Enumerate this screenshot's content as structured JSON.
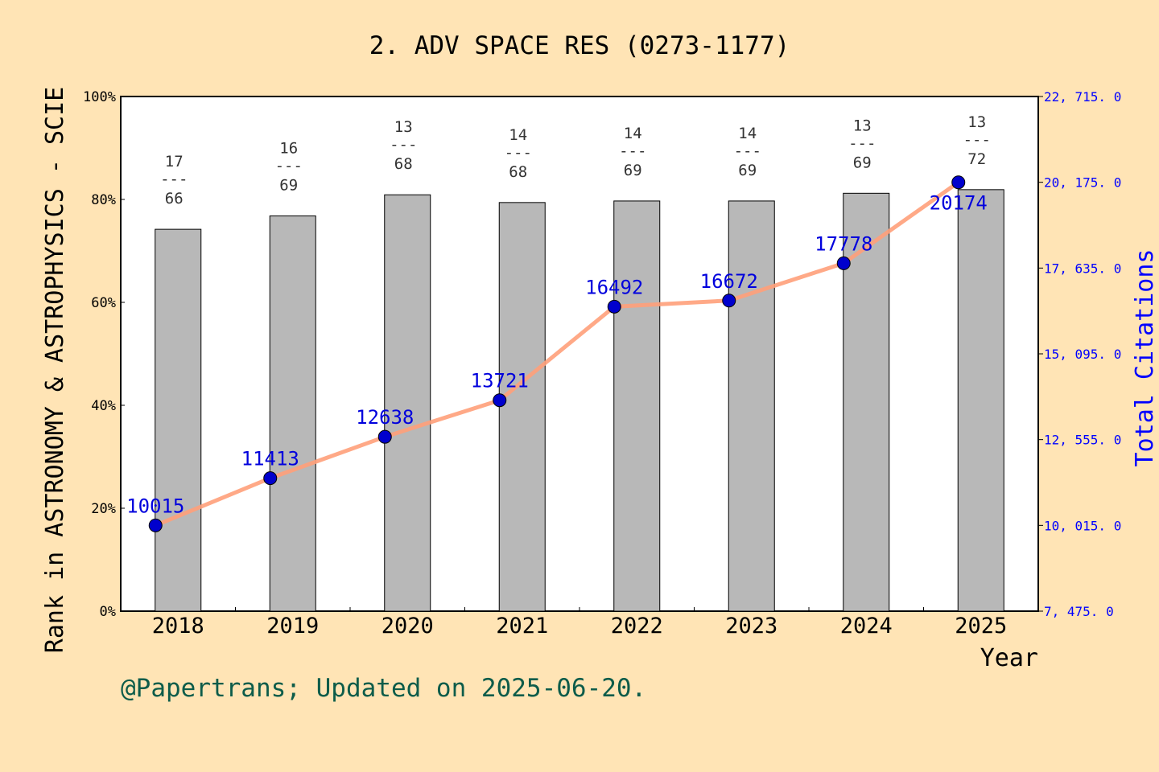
{
  "chart_data": {
    "type": "bar+line",
    "title": "2. ADV SPACE RES (0273-1177)",
    "xlabel": "Year",
    "ylabel_left": "Rank in ASTRONOMY & ASTROPHYSICS - SCIE",
    "ylabel_right": "Total Citations",
    "categories": [
      "2018",
      "2019",
      "2020",
      "2021",
      "2022",
      "2023",
      "2024",
      "2025"
    ],
    "ranks": [
      17,
      16,
      13,
      14,
      14,
      14,
      13,
      13
    ],
    "totals": [
      66,
      69,
      68,
      68,
      69,
      69,
      69,
      72
    ],
    "rank_percentile": [
      74.2,
      76.8,
      80.9,
      79.4,
      79.7,
      79.7,
      81.2,
      81.9
    ],
    "citations": [
      10015,
      11413,
      12638,
      13721,
      16492,
      16672,
      17778,
      20174
    ],
    "ylim_left": [
      0,
      100
    ],
    "yticks_left": [
      "0%",
      "20%",
      "40%",
      "60%",
      "80%",
      "100%"
    ],
    "ylim_right": [
      7475,
      22715
    ],
    "yticks_right": [
      "7, 475. 0",
      "10, 015. 0",
      "12, 555. 0",
      "15, 095. 0",
      "17, 635. 0",
      "20, 175. 0",
      "22, 715. 0"
    ],
    "colors": {
      "bar": "#b8b8b8",
      "line": "#ffa07a",
      "marker": "#0000cd",
      "right_axis": "#0000ff",
      "footer": "#0d5c4a"
    }
  },
  "footer": "@Papertrans; Updated on 2025-06-20."
}
